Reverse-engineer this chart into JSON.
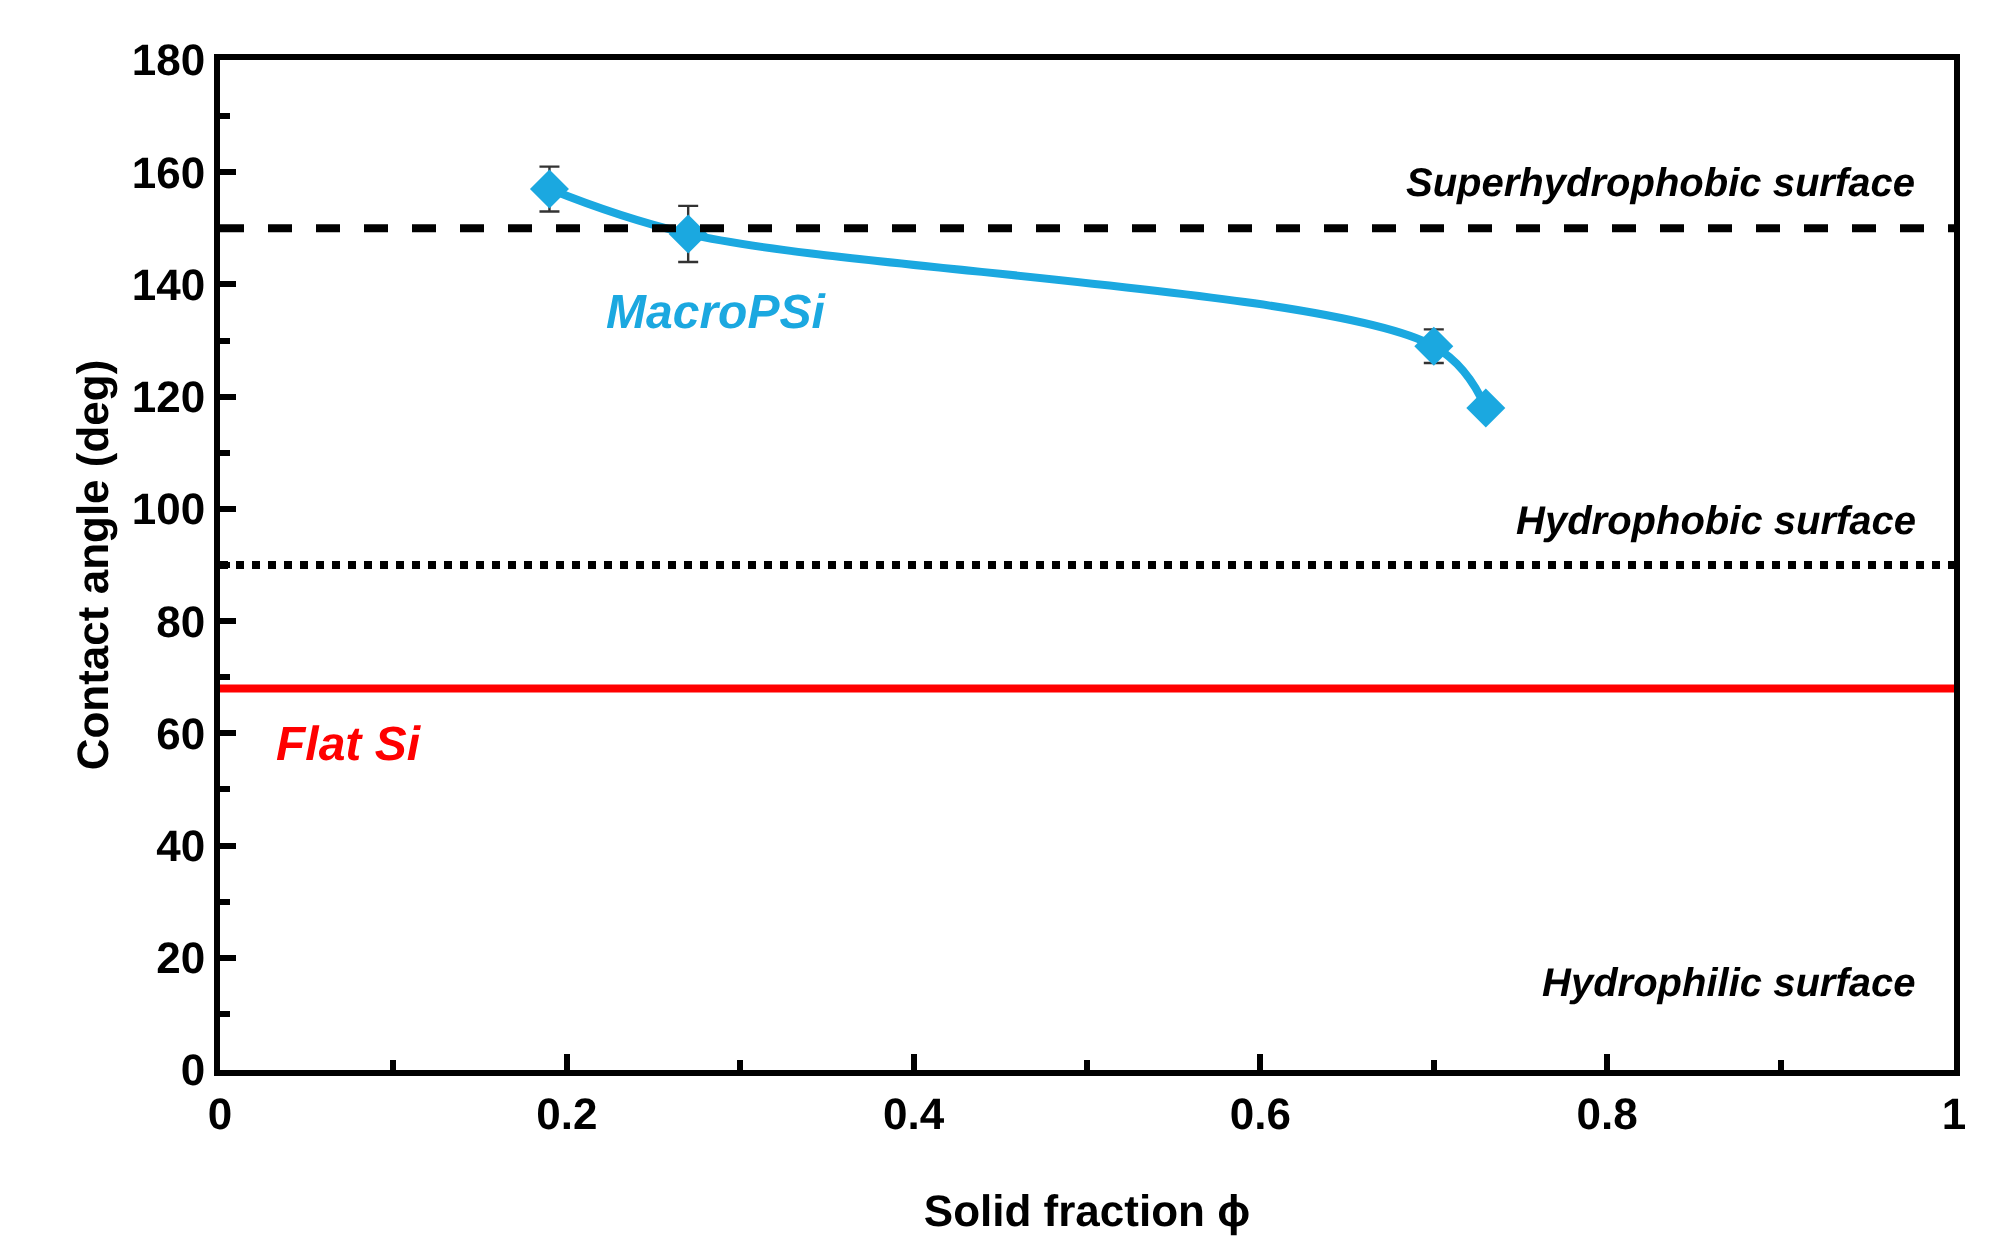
{
  "chart_data": {
    "type": "line",
    "xlabel": "Solid fraction ϕ",
    "ylabel": "Contact angle (deg)",
    "x": [
      0.19,
      0.27,
      0.7,
      0.73
    ],
    "series": [
      {
        "name": "MacroPSi",
        "color": "#1ba8e0",
        "values": [
          157,
          149,
          129,
          118
        ],
        "errors": [
          4,
          5,
          3,
          null
        ]
      }
    ],
    "marker": "diamond",
    "line_style": "solid",
    "grid": false,
    "legend": false,
    "xlim": [
      0,
      1
    ],
    "xticks": [
      0,
      0.2,
      0.4,
      0.6,
      0.8,
      1
    ],
    "ylim": [
      0,
      180
    ],
    "yticks": [
      0,
      20,
      40,
      60,
      80,
      100,
      120,
      140,
      160,
      180
    ],
    "ref_lines": [
      {
        "axis": "y",
        "value": 150,
        "label": "Superhydrophobic surface",
        "color": "#000000",
        "line_style": "dashed"
      },
      {
        "axis": "y",
        "value": 90,
        "label": "Hydrophobic surface",
        "color": "#000000",
        "line_style": "dotted"
      },
      {
        "axis": "y",
        "value": 68,
        "label": "Flat Si",
        "color": "#ff0000",
        "line_style": "solid"
      }
    ],
    "annotations": [
      "Hydrophilic surface"
    ]
  }
}
